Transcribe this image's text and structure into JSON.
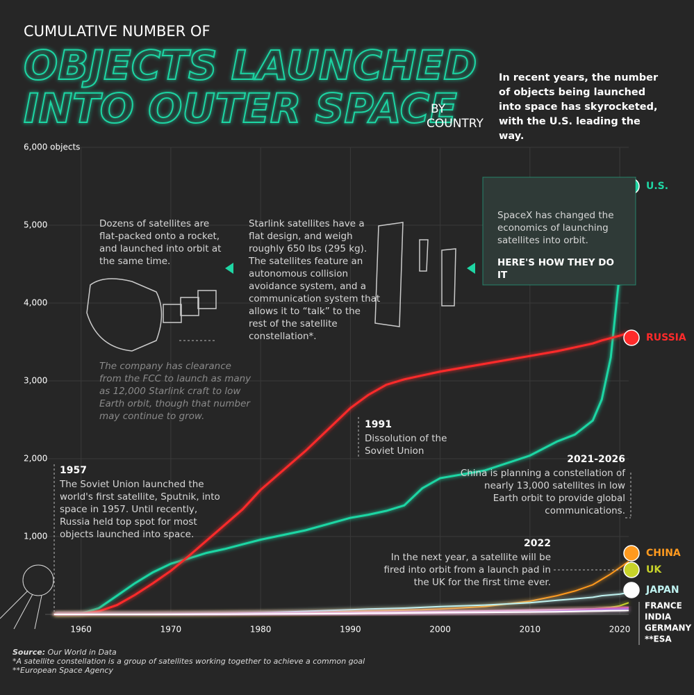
{
  "chart_data": {
    "type": "line",
    "title_small": "CUMULATIVE NUMBER OF",
    "title_lines": [
      "OBJECTS LAUNCHED",
      "INTO OUTER SPACE"
    ],
    "title_suffix": [
      "BY",
      "COUNTRY"
    ],
    "intro": "In recent years, the number of objects being launched into space has skyrocketed, with the U.S. leading the way.",
    "x": [
      1957,
      1960,
      1962,
      1964,
      1966,
      1968,
      1970,
      1972,
      1974,
      1976,
      1978,
      1980,
      1985,
      1990,
      1992,
      1994,
      1996,
      1998,
      2000,
      2005,
      2010,
      2013,
      2015,
      2017,
      2018,
      2019,
      2020,
      2021
    ],
    "xlim": [
      1956,
      2021
    ],
    "xticks": [
      1960,
      1970,
      1980,
      1990,
      2000,
      2010,
      2020
    ],
    "ylim": [
      0,
      6000
    ],
    "yticks": [
      {
        "value": 1000,
        "label": "1,000"
      },
      {
        "value": 2000,
        "label": "2,000"
      },
      {
        "value": 3000,
        "label": "3,000"
      },
      {
        "value": 4000,
        "label": "4,000"
      },
      {
        "value": 5000,
        "label": "5,000"
      },
      {
        "value": 6000,
        "label": "6,000 objects"
      }
    ],
    "grid": true,
    "series": [
      {
        "name": "U.S.",
        "color": "#1fd6a4",
        "values": [
          0,
          10,
          80,
          240,
          400,
          540,
          650,
          720,
          790,
          840,
          900,
          960,
          1080,
          1240,
          1280,
          1330,
          1400,
          1620,
          1750,
          1850,
          2040,
          2220,
          2310,
          2490,
          2760,
          3300,
          4400,
          5580
        ]
      },
      {
        "name": "RUSSIA",
        "color": "#ff2a2a",
        "values": [
          0,
          5,
          40,
          120,
          250,
          400,
          560,
          750,
          950,
          1150,
          1350,
          1600,
          2100,
          2650,
          2820,
          2950,
          3020,
          3070,
          3120,
          3220,
          3320,
          3380,
          3430,
          3480,
          3520,
          3550,
          3580,
          3620
        ]
      },
      {
        "name": "CHINA",
        "color": "#ff9a1f",
        "values": [
          0,
          0,
          0,
          0,
          0,
          0,
          1,
          2,
          3,
          5,
          8,
          12,
          20,
          40,
          45,
          50,
          55,
          60,
          70,
          100,
          170,
          240,
          300,
          380,
          450,
          520,
          600,
          680
        ]
      },
      {
        "name": "UK",
        "color": "#c8d42a",
        "values": [
          0,
          0,
          1,
          2,
          3,
          5,
          8,
          10,
          12,
          14,
          15,
          16,
          18,
          22,
          24,
          26,
          28,
          30,
          32,
          38,
          45,
          55,
          60,
          70,
          80,
          90,
          110,
          150
        ]
      },
      {
        "name": "JAPAN",
        "color": "#bff2f0",
        "values": [
          0,
          0,
          0,
          0,
          0,
          0,
          1,
          3,
          6,
          10,
          15,
          20,
          40,
          60,
          70,
          75,
          80,
          90,
          100,
          120,
          150,
          180,
          200,
          220,
          240,
          250,
          260,
          280
        ]
      },
      {
        "name": "FRANCE",
        "color": "#f2c0d0",
        "values": [
          0,
          0,
          0,
          0,
          1,
          3,
          5,
          8,
          10,
          12,
          14,
          16,
          20,
          25,
          28,
          30,
          32,
          35,
          38,
          45,
          55,
          62,
          66,
          70,
          74,
          78,
          82,
          86
        ]
      },
      {
        "name": "INDIA",
        "color": "#e060a0",
        "values": [
          0,
          0,
          0,
          0,
          0,
          0,
          0,
          0,
          0,
          1,
          2,
          3,
          5,
          8,
          10,
          12,
          14,
          16,
          18,
          25,
          35,
          45,
          55,
          65,
          75,
          80,
          85,
          90
        ]
      },
      {
        "name": "GERMANY",
        "color": "#b070e0",
        "values": [
          0,
          0,
          0,
          0,
          0,
          0,
          1,
          2,
          3,
          4,
          5,
          6,
          8,
          12,
          14,
          16,
          18,
          20,
          22,
          28,
          35,
          42,
          48,
          55,
          60,
          64,
          68,
          72
        ]
      },
      {
        "name": "**ESA",
        "color": "#ffffff",
        "values": [
          0,
          0,
          0,
          0,
          0,
          0,
          0,
          1,
          2,
          3,
          4,
          5,
          8,
          12,
          14,
          16,
          18,
          20,
          22,
          26,
          30,
          34,
          38,
          42,
          44,
          46,
          48,
          50
        ]
      }
    ],
    "annotations": [
      {
        "text": "Dozens of satellites are flat-packed onto a rocket, and launched into orbit at the same time."
      },
      {
        "text": "Starlink satellites have a flat design, and weigh roughly 650 lbs (295 kg). The satellites feature an autonomous collision avoidance system, and a communication system that allows it to “talk” to the rest of the satellite constellation*."
      },
      {
        "text": "SpaceX has changed the economics of launching satellites into orbit.",
        "link": "HERE'S HOW THEY DO IT"
      },
      {
        "text": "The company has clearance from the FCC to launch as many as 12,000 Starlink craft to low Earth orbit, though that number may continue to grow."
      },
      {
        "heading": "1991",
        "text": "Dissolution of the Soviet Union"
      },
      {
        "heading": "1957",
        "text": "The Soviet Union launched the world's first satellite, Sputnik, into space in 1957. Until recently, Russia held top spot for most objects launched into space."
      },
      {
        "heading": "2021-2026",
        "text": "China is planning a constellation of nearly 13,000 satellites in low Earth orbit to provide global communications."
      },
      {
        "heading": "2022",
        "text": "In the next year, a satellite will be fired into orbit from a launch pad in the UK for the first time ever."
      }
    ],
    "source_label": "Source:",
    "source": "Our World in Data",
    "notes": [
      "*A satellite constellation is a group of satellites working together to achieve a common goal",
      "**European Space Agency"
    ]
  }
}
